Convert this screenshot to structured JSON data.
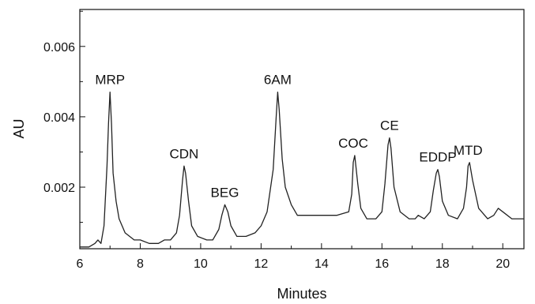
{
  "chart_data": {
    "type": "line",
    "title": "",
    "xlabel": "Minutes",
    "ylabel": "AU",
    "xlim": [
      6,
      20.7
    ],
    "ylim": [
      0.00025,
      0.00705
    ],
    "xticks": [
      6,
      8,
      10,
      12,
      14,
      16,
      18,
      20
    ],
    "xtick_labels": [
      "6",
      "8",
      "10",
      "12",
      "14",
      "16",
      "18",
      "20"
    ],
    "yticks": [
      0.002,
      0.004,
      0.006
    ],
    "ytick_labels": [
      "0.002",
      "0.004",
      "0.006"
    ],
    "grid": false,
    "legend": "none",
    "line_color": "#222222",
    "series": [
      {
        "x": [
          6.0,
          6.3,
          6.5,
          6.6,
          6.7,
          6.8,
          6.9,
          6.95,
          7.0,
          7.05,
          7.1,
          7.2,
          7.3,
          7.5,
          7.8,
          8.0,
          8.3,
          8.6,
          8.8,
          9.0,
          9.2,
          9.3,
          9.4,
          9.45,
          9.5,
          9.6,
          9.7,
          9.9,
          10.2,
          10.4,
          10.6,
          10.7,
          10.8,
          10.9,
          11.0,
          11.2,
          11.5,
          11.8,
          12.0,
          12.2,
          12.4,
          12.5,
          12.55,
          12.6,
          12.7,
          12.8,
          13.0,
          13.2,
          13.5,
          13.8,
          14.0,
          14.5,
          14.9,
          15.0,
          15.05,
          15.1,
          15.2,
          15.3,
          15.5,
          15.8,
          16.0,
          16.1,
          16.2,
          16.25,
          16.3,
          16.4,
          16.6,
          16.9,
          17.1,
          17.2,
          17.4,
          17.6,
          17.7,
          17.8,
          17.85,
          17.9,
          18.0,
          18.2,
          18.5,
          18.7,
          18.8,
          18.85,
          18.9,
          19.0,
          19.2,
          19.5,
          19.7,
          19.85,
          20.0,
          20.3,
          20.7
        ],
        "y": [
          0.0003,
          0.0003,
          0.0004,
          0.0005,
          0.0004,
          0.0009,
          0.0026,
          0.0038,
          0.0047,
          0.0038,
          0.0024,
          0.0016,
          0.0011,
          0.0007,
          0.0005,
          0.0005,
          0.0004,
          0.0004,
          0.0005,
          0.0005,
          0.0007,
          0.0012,
          0.0022,
          0.0026,
          0.0024,
          0.0016,
          0.0009,
          0.0006,
          0.0005,
          0.0005,
          0.0008,
          0.0012,
          0.0015,
          0.0013,
          0.0009,
          0.0006,
          0.0006,
          0.0007,
          0.0009,
          0.0013,
          0.0025,
          0.004,
          0.0047,
          0.0042,
          0.0028,
          0.002,
          0.0015,
          0.0012,
          0.0012,
          0.0012,
          0.0012,
          0.0012,
          0.0013,
          0.0018,
          0.0027,
          0.0029,
          0.0021,
          0.0014,
          0.0011,
          0.0011,
          0.0013,
          0.0021,
          0.0032,
          0.0034,
          0.0031,
          0.002,
          0.0013,
          0.0011,
          0.0011,
          0.0012,
          0.0011,
          0.0013,
          0.0019,
          0.0024,
          0.0025,
          0.0023,
          0.0016,
          0.0012,
          0.0011,
          0.0014,
          0.002,
          0.0026,
          0.0027,
          0.0022,
          0.0014,
          0.0011,
          0.0012,
          0.0014,
          0.0013,
          0.0011,
          0.0011
        ]
      }
    ],
    "annotations": [
      {
        "text": "MRP",
        "x": 7.0,
        "y": 0.0047
      },
      {
        "text": "CDN",
        "x": 9.45,
        "y": 0.0026
      },
      {
        "text": "BEG",
        "x": 10.8,
        "y": 0.0015
      },
      {
        "text": "6AM",
        "x": 12.55,
        "y": 0.0047
      },
      {
        "text": "COC",
        "x": 15.05,
        "y": 0.0029
      },
      {
        "text": "CE",
        "x": 16.25,
        "y": 0.0034
      },
      {
        "text": "EDDP",
        "x": 17.85,
        "y": 0.0025
      },
      {
        "text": "MTD",
        "x": 18.85,
        "y": 0.0027
      }
    ]
  }
}
